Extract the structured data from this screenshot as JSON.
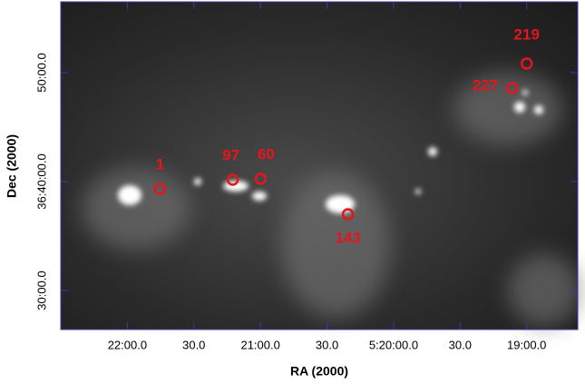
{
  "chart_data": {
    "type": "scatter",
    "xlabel": "RA (2000)",
    "ylabel": "Dec (2000)",
    "labels": [
      "1",
      "97",
      "60",
      "143",
      "227",
      "219"
    ],
    "x": [
      19305.3,
      19272.5,
      19259.9,
      19220.6,
      19146.5,
      19140
    ],
    "values": [
      131960,
      132010,
      132015,
      131820,
      132515,
      132650
    ],
    "color": "#e8141c",
    "xlim": [
      19350,
      19117
    ],
    "ylim": [
      131185,
      132990
    ],
    "xticks": [
      {
        "value": 19320,
        "label": "22:00.0"
      },
      {
        "value": 19290,
        "label": "30.0"
      },
      {
        "value": 19260,
        "label": "21:00.0"
      },
      {
        "value": 19230,
        "label": "30.0"
      },
      {
        "value": 19200,
        "label": "5:20:00.0"
      },
      {
        "value": 19170,
        "label": "30.0"
      },
      {
        "value": 19140,
        "label": "19:00.0"
      }
    ],
    "yticks": [
      {
        "value": 131400,
        "label": "30:00.0"
      },
      {
        "value": 132000,
        "label": "36:40:00.0"
      },
      {
        "value": 132600,
        "label": "50:00.0"
      }
    ]
  }
}
